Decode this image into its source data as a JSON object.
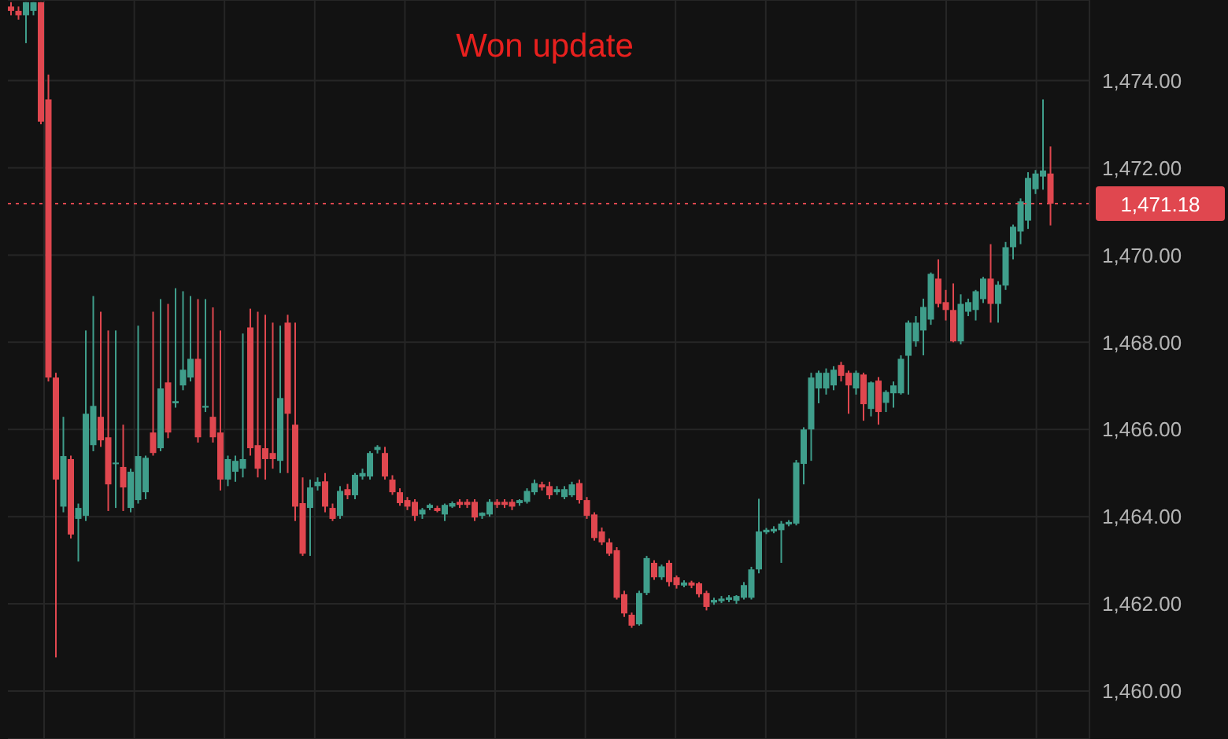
{
  "chart_data": {
    "type": "candlestick",
    "title": "Won update",
    "categories": [
      null,
      null,
      null,
      null,
      null,
      null,
      null,
      null,
      null,
      null,
      null,
      null,
      null,
      null,
      null,
      null,
      null,
      null,
      null,
      null,
      null,
      null,
      null,
      null,
      null,
      null,
      null,
      null,
      null,
      null,
      null,
      null,
      null,
      null,
      null,
      null,
      null,
      null,
      null,
      null,
      null,
      null,
      null,
      null,
      null,
      null,
      null,
      null,
      null,
      null,
      null,
      null,
      null,
      null,
      null,
      null,
      null,
      null,
      null,
      null,
      null,
      null,
      null,
      null,
      null,
      null,
      null,
      null,
      null,
      null,
      null,
      null,
      null,
      null,
      null,
      null,
      null,
      null,
      null,
      null,
      null,
      null,
      null,
      null,
      null,
      null,
      null,
      null,
      null,
      null,
      null,
      null,
      null,
      null,
      null,
      null,
      null,
      null,
      null,
      null,
      null,
      null,
      null,
      null,
      null,
      null,
      null,
      null,
      null,
      null,
      null,
      null,
      null,
      null,
      null,
      null,
      null,
      null,
      null,
      null,
      null,
      null,
      null,
      null,
      null,
      null,
      null,
      null,
      null,
      null,
      null,
      null,
      null,
      null,
      null,
      null,
      null,
      null,
      null,
      null
    ],
    "ohlc": [
      [
        1475.7,
        1475.8,
        1475.5,
        1475.6
      ],
      [
        1475.6,
        1475.7,
        1475.4,
        1475.5
      ],
      [
        1475.5,
        1475.8,
        1474.86,
        1475.8
      ],
      [
        1475.6,
        1475.8,
        1475.5,
        1475.8
      ],
      [
        1475.8,
        1475.8,
        1473.0,
        1473.06
      ],
      [
        1473.57,
        1474.14,
        1467.1,
        1467.19
      ],
      [
        1467.19,
        1467.3,
        1460.77,
        1464.85
      ],
      [
        1464.23,
        1466.29,
        1464.1,
        1465.39
      ],
      [
        1465.32,
        1465.4,
        1463.5,
        1463.59
      ],
      [
        1463.95,
        1464.3,
        1462.97,
        1464.2
      ],
      [
        1464.02,
        1468.27,
        1463.9,
        1466.36
      ],
      [
        1465.64,
        1469.06,
        1465.5,
        1466.54
      ],
      [
        1466.29,
        1468.7,
        1465.6,
        1465.75
      ],
      [
        1465.82,
        1468.27,
        1464.13,
        1464.74
      ],
      [
        1465.21,
        1468.27,
        1464.2,
        1465.24
      ],
      [
        1465.14,
        1466.11,
        1464.13,
        1464.67
      ],
      [
        1464.2,
        1465.1,
        1464.1,
        1465.03
      ],
      [
        1464.38,
        1468.38,
        1464.3,
        1465.39
      ],
      [
        1464.56,
        1465.4,
        1464.4,
        1465.35
      ],
      [
        1465.93,
        1468.7,
        1465.4,
        1465.46
      ],
      [
        1465.57,
        1468.99,
        1465.5,
        1466.94
      ],
      [
        1467.08,
        1468.88,
        1465.8,
        1465.93
      ],
      [
        1466.6,
        1469.24,
        1466.5,
        1466.65
      ],
      [
        1467.01,
        1469.17,
        1466.9,
        1467.37
      ],
      [
        1467.19,
        1469.06,
        1467.1,
        1467.62
      ],
      [
        1467.62,
        1468.99,
        1465.7,
        1465.82
      ],
      [
        1466.5,
        1468.99,
        1466.4,
        1466.54
      ],
      [
        1466.29,
        1468.8,
        1465.7,
        1465.82
      ],
      [
        1465.93,
        1468.27,
        1464.6,
        1464.85
      ],
      [
        1464.85,
        1465.4,
        1464.7,
        1465.32
      ],
      [
        1465.03,
        1465.4,
        1464.8,
        1465.28
      ],
      [
        1465.1,
        1468.2,
        1464.9,
        1465.32
      ],
      [
        1468.34,
        1468.77,
        1465.4,
        1465.57
      ],
      [
        1465.64,
        1468.7,
        1464.9,
        1465.1
      ],
      [
        1465.57,
        1468.63,
        1464.85,
        1465.32
      ],
      [
        1465.46,
        1468.45,
        1465.1,
        1465.32
      ],
      [
        1465.28,
        1468.38,
        1465.0,
        1466.72
      ],
      [
        1468.45,
        1468.63,
        1465.0,
        1466.36
      ],
      [
        1466.11,
        1468.45,
        1463.9,
        1464.23
      ],
      [
        1464.31,
        1464.9,
        1463.1,
        1463.15
      ],
      [
        1464.2,
        1464.85,
        1463.1,
        1464.67
      ],
      [
        1464.7,
        1464.9,
        1464.6,
        1464.8
      ],
      [
        1464.81,
        1465.0,
        1464.1,
        1464.23
      ],
      [
        1464.2,
        1464.3,
        1463.9,
        1463.95
      ],
      [
        1464.02,
        1464.7,
        1463.95,
        1464.59
      ],
      [
        1464.63,
        1464.75,
        1464.4,
        1464.49
      ],
      [
        1464.49,
        1465.0,
        1464.4,
        1464.96
      ],
      [
        1464.92,
        1465.1,
        1464.85,
        1465.0
      ],
      [
        1464.92,
        1465.5,
        1464.85,
        1465.46
      ],
      [
        1465.53,
        1465.64,
        1465.45,
        1465.6
      ],
      [
        1465.46,
        1465.6,
        1464.85,
        1464.92
      ],
      [
        1464.85,
        1464.95,
        1464.5,
        1464.56
      ],
      [
        1464.56,
        1464.65,
        1464.25,
        1464.31
      ],
      [
        1464.38,
        1464.45,
        1464.15,
        1464.23
      ],
      [
        1464.34,
        1464.4,
        1463.9,
        1464.02
      ],
      [
        1464.05,
        1464.2,
        1463.95,
        1464.16
      ],
      [
        1464.2,
        1464.3,
        1464.15,
        1464.27
      ],
      [
        1464.2,
        1464.25,
        1464.1,
        1464.13
      ],
      [
        1464.05,
        1464.3,
        1463.9,
        1464.27
      ],
      [
        1464.23,
        1464.35,
        1464.2,
        1464.31
      ],
      [
        1464.34,
        1464.4,
        1464.2,
        1464.27
      ],
      [
        1464.34,
        1464.4,
        1464.2,
        1464.27
      ],
      [
        1464.34,
        1464.4,
        1463.9,
        1463.98
      ],
      [
        1464.02,
        1464.1,
        1463.95,
        1464.09
      ],
      [
        1464.05,
        1464.4,
        1464.0,
        1464.34
      ],
      [
        1464.34,
        1464.4,
        1464.2,
        1464.27
      ],
      [
        1464.34,
        1464.4,
        1464.2,
        1464.27
      ],
      [
        1464.34,
        1464.4,
        1464.15,
        1464.23
      ],
      [
        1464.31,
        1464.4,
        1464.25,
        1464.38
      ],
      [
        1464.34,
        1464.65,
        1464.3,
        1464.59
      ],
      [
        1464.56,
        1464.85,
        1464.5,
        1464.77
      ],
      [
        1464.74,
        1464.8,
        1464.6,
        1464.67
      ],
      [
        1464.7,
        1464.8,
        1464.4,
        1464.49
      ],
      [
        1464.56,
        1464.7,
        1464.5,
        1464.63
      ],
      [
        1464.45,
        1464.7,
        1464.4,
        1464.63
      ],
      [
        1464.49,
        1464.8,
        1464.45,
        1464.74
      ],
      [
        1464.77,
        1464.85,
        1464.3,
        1464.38
      ],
      [
        1464.38,
        1464.45,
        1463.95,
        1464.02
      ],
      [
        1464.05,
        1464.1,
        1463.45,
        1463.51
      ],
      [
        1463.66,
        1463.75,
        1463.35,
        1463.41
      ],
      [
        1463.41,
        1463.5,
        1463.1,
        1463.15
      ],
      [
        1463.23,
        1463.3,
        1462.1,
        1462.14
      ],
      [
        1462.22,
        1462.3,
        1461.7,
        1461.78
      ],
      [
        1461.75,
        1461.8,
        1461.45,
        1461.5
      ],
      [
        1461.53,
        1462.3,
        1461.5,
        1462.25
      ],
      [
        1462.25,
        1463.1,
        1462.2,
        1463.05
      ],
      [
        1462.94,
        1463.0,
        1462.55,
        1462.61
      ],
      [
        1462.61,
        1462.9,
        1462.55,
        1462.86
      ],
      [
        1462.94,
        1463.0,
        1462.4,
        1462.5
      ],
      [
        1462.61,
        1462.65,
        1462.35,
        1462.43
      ],
      [
        1462.42,
        1462.54,
        1462.38,
        1462.49
      ],
      [
        1462.49,
        1462.53,
        1462.36,
        1462.42
      ],
      [
        1462.47,
        1462.5,
        1462.15,
        1462.22
      ],
      [
        1462.25,
        1462.3,
        1461.85,
        1461.93
      ],
      [
        1462.03,
        1462.14,
        1461.98,
        1462.09
      ],
      [
        1462.06,
        1462.18,
        1462.02,
        1462.12
      ],
      [
        1462.09,
        1462.2,
        1462.04,
        1462.15
      ],
      [
        1462.07,
        1462.2,
        1462.0,
        1462.18
      ],
      [
        1462.14,
        1462.5,
        1462.1,
        1462.43
      ],
      [
        1462.14,
        1462.85,
        1462.1,
        1462.79
      ],
      [
        1462.79,
        1464.41,
        1462.7,
        1463.66
      ],
      [
        1463.64,
        1463.74,
        1463.6,
        1463.7
      ],
      [
        1463.66,
        1463.78,
        1463.62,
        1463.72
      ],
      [
        1463.69,
        1463.9,
        1462.94,
        1463.84
      ],
      [
        1463.82,
        1463.92,
        1463.78,
        1463.88
      ],
      [
        1463.84,
        1465.3,
        1463.8,
        1465.24
      ],
      [
        1465.21,
        1466.05,
        1464.74,
        1466.0
      ],
      [
        1466.0,
        1467.3,
        1465.28,
        1467.19
      ],
      [
        1466.94,
        1467.35,
        1466.6,
        1467.3
      ],
      [
        1466.94,
        1467.4,
        1466.8,
        1467.3
      ],
      [
        1467.01,
        1467.45,
        1466.9,
        1467.37
      ],
      [
        1467.48,
        1467.55,
        1467.1,
        1467.23
      ],
      [
        1467.3,
        1467.35,
        1466.36,
        1467.01
      ],
      [
        1466.94,
        1467.35,
        1466.8,
        1467.3
      ],
      [
        1467.26,
        1467.3,
        1466.2,
        1466.58
      ],
      [
        1466.47,
        1467.1,
        1466.3,
        1467.08
      ],
      [
        1467.12,
        1467.2,
        1466.11,
        1466.4
      ],
      [
        1466.61,
        1466.9,
        1466.4,
        1466.86
      ],
      [
        1466.83,
        1467.1,
        1466.5,
        1467.01
      ],
      [
        1466.83,
        1467.7,
        1466.8,
        1467.62
      ],
      [
        1467.69,
        1468.5,
        1466.8,
        1468.45
      ],
      [
        1468.02,
        1468.6,
        1467.9,
        1468.45
      ],
      [
        1468.27,
        1469.0,
        1467.7,
        1468.81
      ],
      [
        1468.52,
        1469.6,
        1468.4,
        1469.57
      ],
      [
        1469.46,
        1469.9,
        1468.8,
        1468.88
      ],
      [
        1468.92,
        1469.2,
        1468.5,
        1468.74
      ],
      [
        1468.74,
        1469.35,
        1468.0,
        1468.02
      ],
      [
        1468.02,
        1469.1,
        1467.95,
        1468.88
      ],
      [
        1468.7,
        1469.0,
        1468.6,
        1468.92
      ],
      [
        1468.74,
        1469.2,
        1468.5,
        1469.17
      ],
      [
        1468.99,
        1469.5,
        1468.9,
        1469.46
      ],
      [
        1469.46,
        1470.25,
        1468.45,
        1468.88
      ],
      [
        1468.88,
        1469.4,
        1468.45,
        1469.32
      ],
      [
        1469.3,
        1470.3,
        1469.2,
        1470.18
      ],
      [
        1470.18,
        1470.7,
        1469.9,
        1470.65
      ],
      [
        1470.54,
        1471.3,
        1470.25,
        1471.23
      ],
      [
        1470.79,
        1471.9,
        1470.6,
        1471.77
      ],
      [
        1471.51,
        1471.95,
        1471.4,
        1471.87
      ],
      [
        1471.8,
        1473.57,
        1471.5,
        1471.94
      ],
      [
        1471.87,
        1472.49,
        1470.68,
        1471.18
      ]
    ],
    "ylim": [
      1458.9,
      1475.85
    ],
    "yticks": [
      {
        "value": 1460,
        "label": "1,460.00"
      },
      {
        "value": 1462,
        "label": "1,462.00"
      },
      {
        "value": 1464,
        "label": "1,464.00"
      },
      {
        "value": 1466,
        "label": "1,466.00"
      },
      {
        "value": 1468,
        "label": "1,468.00"
      },
      {
        "value": 1470,
        "label": "1,470.00"
      },
      {
        "value": 1472,
        "label": "1,472.00"
      },
      {
        "value": 1474,
        "label": "1,474.00"
      }
    ],
    "ref_lines": [
      {
        "axis": "y",
        "value": 1471.18,
        "label": "1,471.18",
        "color": "#e0474f",
        "line_style": "dotted"
      }
    ],
    "grid": true,
    "tick_labels": "y"
  }
}
